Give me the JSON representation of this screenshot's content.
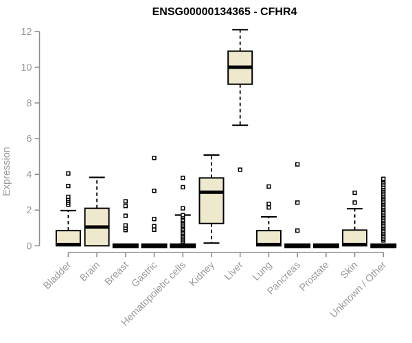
{
  "chart_data": {
    "type": "boxplot",
    "title": "ENSG00000134365 - CFHR4",
    "xlabel": "",
    "ylabel": "Expression",
    "ylim": [
      0,
      12
    ],
    "yticks": [
      0,
      2,
      4,
      6,
      8,
      10,
      12
    ],
    "grid": false,
    "legend": false,
    "colors": {
      "box_fill": "#EEE8CD",
      "box_line": "#000000",
      "axis": "#8f8f8f",
      "tick_text": "#9a9a9a",
      "title_text": "#000000"
    },
    "categories": [
      "Bladder",
      "Brain",
      "Breast",
      "Gastric",
      "Hematopoietic cells",
      "Kidney",
      "Liver",
      "Lung",
      "Pancreas",
      "Prostate",
      "Skin",
      "Unknown / Other"
    ],
    "boxes": [
      {
        "label": "Bladder",
        "collapsed": false,
        "q1": 0,
        "median": 0.07,
        "q3": 0.85,
        "whisker_low": 0,
        "whisker_high": 1.97,
        "outliers": [
          2.3,
          2.42,
          2.52,
          2.62,
          2.74,
          3.35,
          4.05
        ]
      },
      {
        "label": "Brain",
        "collapsed": false,
        "q1": 0,
        "median": 1.05,
        "q3": 2.1,
        "whisker_low": 0,
        "whisker_high": 3.83,
        "outliers": []
      },
      {
        "label": "Breast",
        "collapsed": true,
        "q1": 0,
        "median": 0,
        "q3": 0,
        "whisker_low": 0,
        "whisker_high": 0,
        "outliers": [
          0.88,
          1.0,
          1.14,
          1.68,
          2.23,
          2.49
        ]
      },
      {
        "label": "Gastric",
        "collapsed": true,
        "q1": 0,
        "median": 0,
        "q3": 0,
        "whisker_low": 0,
        "whisker_high": 0,
        "outliers": [
          0.9,
          1.1,
          1.5,
          3.08,
          4.92
        ]
      },
      {
        "label": "Hematopoietic cells",
        "collapsed": true,
        "q1": 0,
        "median": 0,
        "q3": 0,
        "whisker_low": 0,
        "whisker_high": 1.72,
        "outliers": [
          0.25,
          0.33,
          0.41,
          0.49,
          0.57,
          0.65,
          0.73,
          0.81,
          0.89,
          0.97,
          1.05,
          1.13,
          1.21,
          1.3,
          1.38,
          1.46,
          1.55,
          1.63,
          1.72,
          2.1,
          3.28,
          3.8
        ]
      },
      {
        "label": "Kidney",
        "collapsed": false,
        "q1": 1.25,
        "median": 3.0,
        "q3": 3.8,
        "whisker_low": 0.15,
        "whisker_high": 5.08,
        "outliers": []
      },
      {
        "label": "Liver",
        "collapsed": false,
        "q1": 9.05,
        "median": 10.0,
        "q3": 10.9,
        "whisker_low": 6.75,
        "whisker_high": 12.1,
        "outliers": [
          4.26
        ]
      },
      {
        "label": "Lung",
        "collapsed": false,
        "q1": 0,
        "median": 0.07,
        "q3": 0.85,
        "whisker_low": 0,
        "whisker_high": 1.62,
        "outliers": [
          2.15,
          2.35,
          3.32
        ]
      },
      {
        "label": "Pancreas",
        "collapsed": true,
        "q1": 0,
        "median": 0,
        "q3": 0,
        "whisker_low": 0,
        "whisker_high": 0,
        "outliers": [
          0.85,
          2.42,
          4.56
        ]
      },
      {
        "label": "Prostate",
        "collapsed": true,
        "q1": 0,
        "median": 0,
        "q3": 0,
        "whisker_low": 0,
        "whisker_high": 0,
        "outliers": []
      },
      {
        "label": "Skin",
        "collapsed": false,
        "q1": 0,
        "median": 0.07,
        "q3": 0.88,
        "whisker_low": 0,
        "whisker_high": 2.08,
        "outliers": [
          2.42,
          2.97
        ]
      },
      {
        "label": "Unknown / Other",
        "collapsed": true,
        "q1": 0,
        "median": 0,
        "q3": 0,
        "whisker_low": 0,
        "whisker_high": 0,
        "outliers": [
          0.3,
          0.39,
          0.48,
          0.57,
          0.66,
          0.75,
          0.84,
          0.93,
          1.02,
          1.11,
          1.2,
          1.29,
          1.38,
          1.47,
          1.56,
          1.65,
          1.74,
          1.83,
          1.92,
          2.01,
          2.1,
          2.19,
          2.28,
          2.37,
          2.46,
          2.55,
          2.64,
          2.73,
          2.82,
          2.91,
          3.0,
          3.1,
          3.2,
          3.3,
          3.4,
          3.5,
          3.6,
          3.7,
          3.75
        ]
      }
    ]
  }
}
